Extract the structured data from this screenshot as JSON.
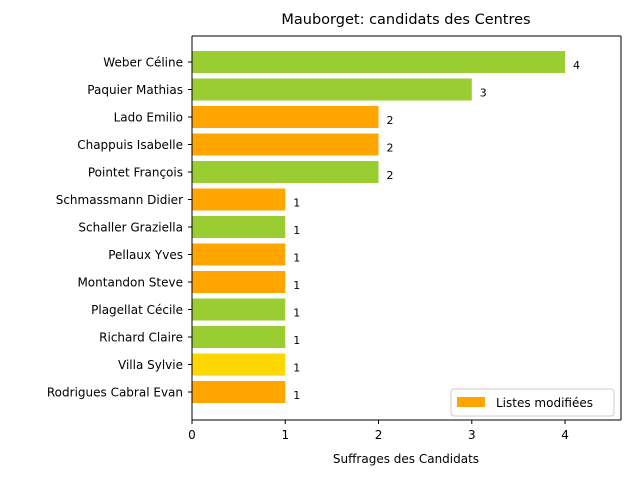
{
  "chart_data": {
    "type": "bar",
    "orientation": "horizontal",
    "title": "Mauborget: candidats des Centres",
    "xlabel": "Suffrages des Candidats",
    "ylabel": "",
    "xlim": [
      0,
      4.6
    ],
    "xticks": [
      0,
      1,
      2,
      3,
      4
    ],
    "grid": false,
    "legend": {
      "position": "lower-right",
      "entries": [
        {
          "label": "Listes modifiées",
          "color": "#FFA500"
        }
      ]
    },
    "categories": [
      "Weber Céline",
      "Paquier Mathias",
      "Lado Emilio",
      "Chappuis Isabelle",
      "Pointet François",
      "Schmassmann Didier",
      "Schaller Graziella",
      "Pellaux Yves",
      "Montandon Steve",
      "Plagellat Cécile",
      "Richard Claire",
      "Villa Sylvie",
      "Rodrigues Cabral Evan"
    ],
    "values": [
      4,
      3,
      2,
      2,
      2,
      1,
      1,
      1,
      1,
      1,
      1,
      1,
      1
    ],
    "colors": [
      "#9ACD32",
      "#9ACD32",
      "#FFA500",
      "#FFA500",
      "#9ACD32",
      "#FFA500",
      "#9ACD32",
      "#FFA500",
      "#FFA500",
      "#9ACD32",
      "#9ACD32",
      "#FFD700",
      "#FFA500"
    ]
  }
}
